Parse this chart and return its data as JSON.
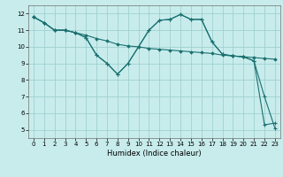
{
  "xlabel": "Humidex (Indice chaleur)",
  "bg_color": "#c8ecec",
  "grid_color": "#a0d0d0",
  "line_color": "#1a7070",
  "xlim": [
    -0.5,
    23.5
  ],
  "ylim": [
    4.5,
    12.5
  ],
  "xticks": [
    0,
    1,
    2,
    3,
    4,
    5,
    6,
    7,
    8,
    9,
    10,
    11,
    12,
    13,
    14,
    15,
    16,
    17,
    18,
    19,
    20,
    21,
    22,
    23
  ],
  "yticks": [
    5,
    6,
    7,
    8,
    9,
    10,
    11,
    12
  ],
  "line1_x": [
    0,
    1,
    2,
    3,
    4,
    5,
    6,
    7,
    8,
    9,
    10,
    11,
    12,
    13,
    14,
    15,
    16,
    17,
    18,
    19,
    20,
    21,
    22,
    23
  ],
  "line1_y": [
    11.8,
    11.45,
    11.0,
    11.0,
    10.85,
    10.7,
    10.5,
    10.35,
    10.15,
    10.05,
    10.0,
    9.9,
    9.85,
    9.8,
    9.75,
    9.7,
    9.65,
    9.6,
    9.5,
    9.45,
    9.4,
    9.35,
    9.3,
    9.25
  ],
  "line2_x": [
    0,
    1,
    2,
    3,
    4,
    5,
    6,
    7,
    8,
    9,
    11,
    12,
    13,
    14,
    15,
    16,
    17,
    18,
    19,
    20,
    21,
    22,
    23
  ],
  "line2_y": [
    11.8,
    11.45,
    11.0,
    11.0,
    10.85,
    10.55,
    9.5,
    9.0,
    8.35,
    9.0,
    11.0,
    11.6,
    11.65,
    11.95,
    11.65,
    11.65,
    10.3,
    9.55,
    9.45,
    9.4,
    9.15,
    7.0,
    5.1
  ],
  "line3_x": [
    0,
    1,
    2,
    3,
    4,
    5,
    6,
    7,
    8,
    9,
    11,
    12,
    13,
    14,
    15,
    16,
    17,
    18,
    19,
    20,
    21,
    22,
    23
  ],
  "line3_y": [
    11.8,
    11.45,
    11.0,
    11.0,
    10.85,
    10.55,
    9.5,
    9.0,
    8.35,
    9.0,
    11.0,
    11.6,
    11.65,
    11.95,
    11.65,
    11.65,
    10.3,
    9.55,
    9.45,
    9.4,
    9.15,
    5.3,
    5.4
  ]
}
